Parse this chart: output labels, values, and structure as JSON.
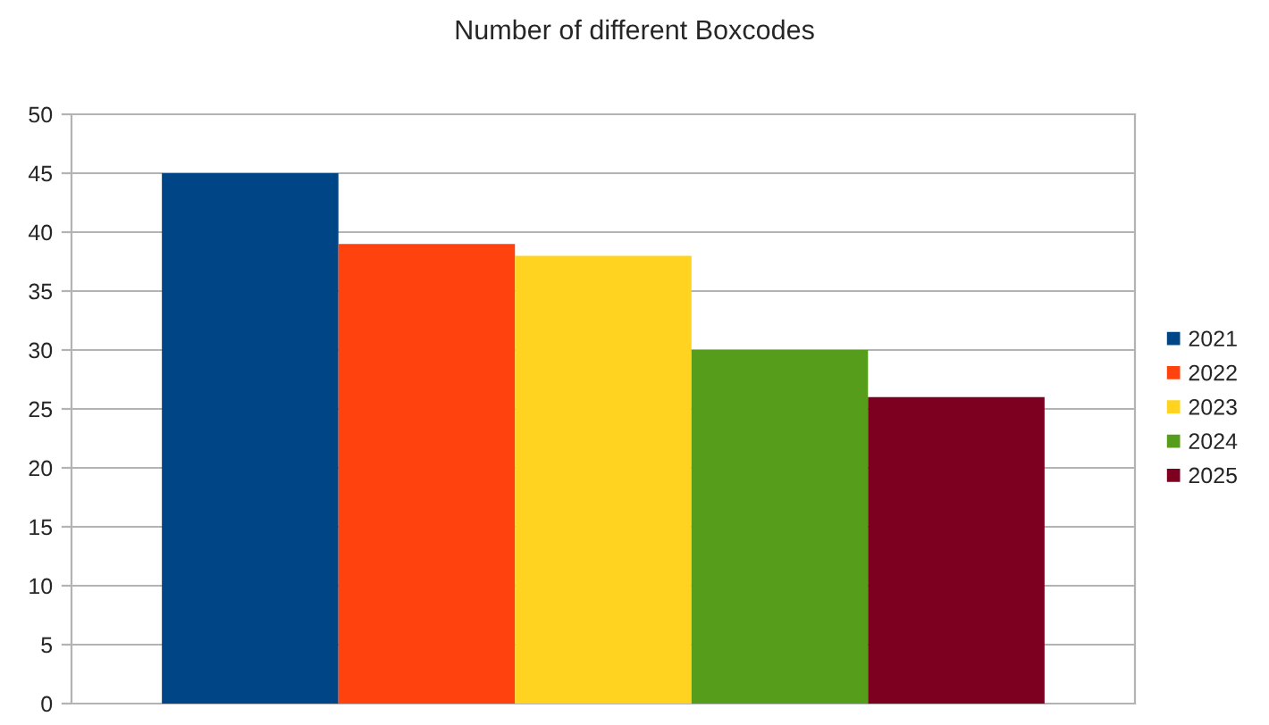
{
  "chart_data": {
    "type": "bar",
    "title": "Number of different Boxcodes",
    "categories": [
      null
    ],
    "series": [
      {
        "name": "2021",
        "color": "#004586",
        "values": [
          45
        ]
      },
      {
        "name": "2022",
        "color": "#ff420e",
        "values": [
          39
        ]
      },
      {
        "name": "2023",
        "color": "#ffd320",
        "values": [
          38
        ]
      },
      {
        "name": "2024",
        "color": "#579d1c",
        "values": [
          30
        ]
      },
      {
        "name": "2025",
        "color": "#7e0021",
        "values": [
          26
        ]
      }
    ],
    "ylim": [
      0,
      50
    ],
    "yticks": [
      0,
      5,
      10,
      15,
      20,
      25,
      30,
      35,
      40,
      45,
      50
    ],
    "grid": "y",
    "legend": "right"
  }
}
